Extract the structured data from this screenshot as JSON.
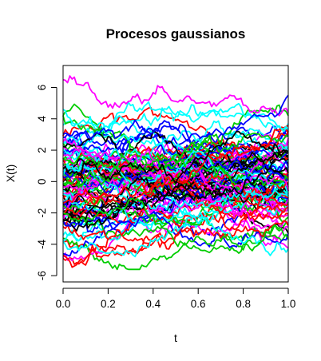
{
  "chart_data": {
    "type": "line",
    "title": "Procesos gaussianos",
    "xlabel": "t",
    "ylabel": "X(t)",
    "xlim": [
      0,
      1
    ],
    "ylim": [
      -6.4,
      7.4
    ],
    "x_ticks": [
      0.0,
      0.2,
      0.4,
      0.6,
      0.8,
      1.0
    ],
    "x_tick_labels": [
      "0.0",
      "0.2",
      "0.4",
      "0.6",
      "0.8",
      "1.0"
    ],
    "y_ticks": [
      -6,
      -4,
      -2,
      0,
      2,
      4,
      6
    ],
    "y_tick_labels": [
      "-6",
      "-4",
      "-2",
      "0",
      "2",
      "4",
      "6"
    ],
    "grid": false,
    "legend": "none",
    "palette": [
      "#000000",
      "#df536b",
      "#61d04f",
      "#2297e6",
      "#28e2e5",
      "#cd0bbc",
      "#f5c710",
      "#9e9e9e"
    ],
    "render_palette": [
      "#000000",
      "#ff0000",
      "#00cd00",
      "#0000ff",
      "#00ffff",
      "#ff00ff"
    ],
    "num_series": 100,
    "points_per_series": 101,
    "series": [
      {
        "x_start": 0,
        "x_end": 1,
        "y_start": 6.5,
        "y_end": 4.4,
        "color": "#ff00ff"
      },
      {
        "x_start": 0,
        "x_end": 1,
        "y_start": 4.6,
        "y_end": 3.3,
        "color": "#00ffff"
      },
      {
        "x_start": 0,
        "x_end": 1,
        "y_start": 3.0,
        "y_end": 5.5,
        "color": "#0000ff"
      },
      {
        "x_start": 0,
        "x_end": 1,
        "y_start": 0.8,
        "y_end": 1.8,
        "color": "#000000"
      },
      {
        "x_start": 0,
        "x_end": 1,
        "y_start": -4.7,
        "y_end": -2.8,
        "color": "#ff0000"
      },
      {
        "x_start": 0,
        "x_end": 1,
        "y_start": -3.8,
        "y_end": -4.3,
        "color": "#00ffff"
      },
      {
        "x_start": 0,
        "x_end": 1,
        "y_start": -2.0,
        "y_end": -3.6,
        "color": "#00cd00"
      }
    ]
  }
}
